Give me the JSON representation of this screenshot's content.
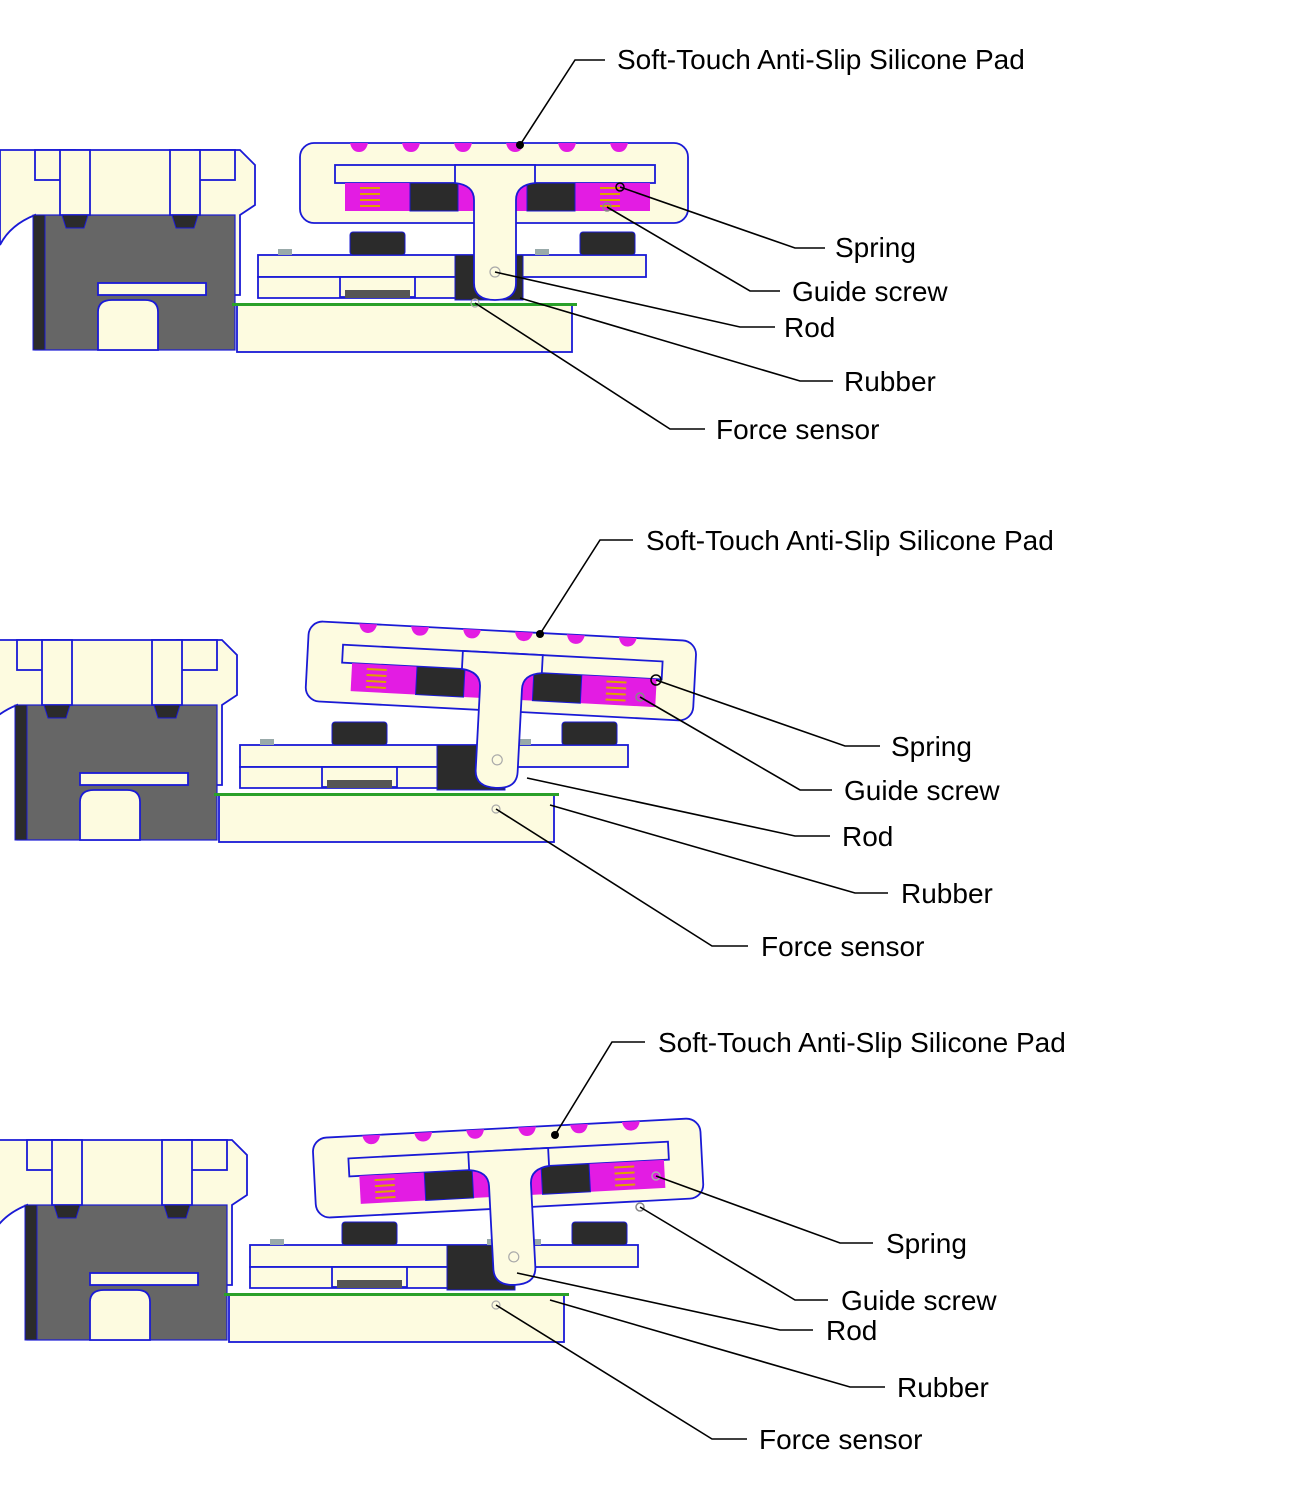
{
  "colors": {
    "part_fill": "#fdfbe0",
    "part_edge": "#1a1ad6",
    "housing_gray": "#666666",
    "silicone_pink": "#e31ce3",
    "spring_yellow": "#e0a000"
  },
  "panels": [
    {
      "id": "top",
      "labels": {
        "pad": "Soft-Touch Anti-Slip Silicone Pad",
        "spring": "Spring",
        "guide_screw": "Guide screw",
        "rod": "Rod",
        "rubber": "Rubber",
        "force_sensor": "Force sensor"
      }
    },
    {
      "id": "middle",
      "labels": {
        "pad": "Soft-Touch Anti-Slip Silicone Pad",
        "spring": "Spring",
        "guide_screw": "Guide screw",
        "rod": "Rod",
        "rubber": "Rubber",
        "force_sensor": "Force sensor"
      }
    },
    {
      "id": "bottom",
      "labels": {
        "pad": "Soft-Touch Anti-Slip Silicone Pad",
        "spring": "Spring",
        "guide_screw": "Guide screw",
        "rod": "Rod",
        "rubber": "Rubber",
        "force_sensor": "Force sensor"
      }
    }
  ]
}
